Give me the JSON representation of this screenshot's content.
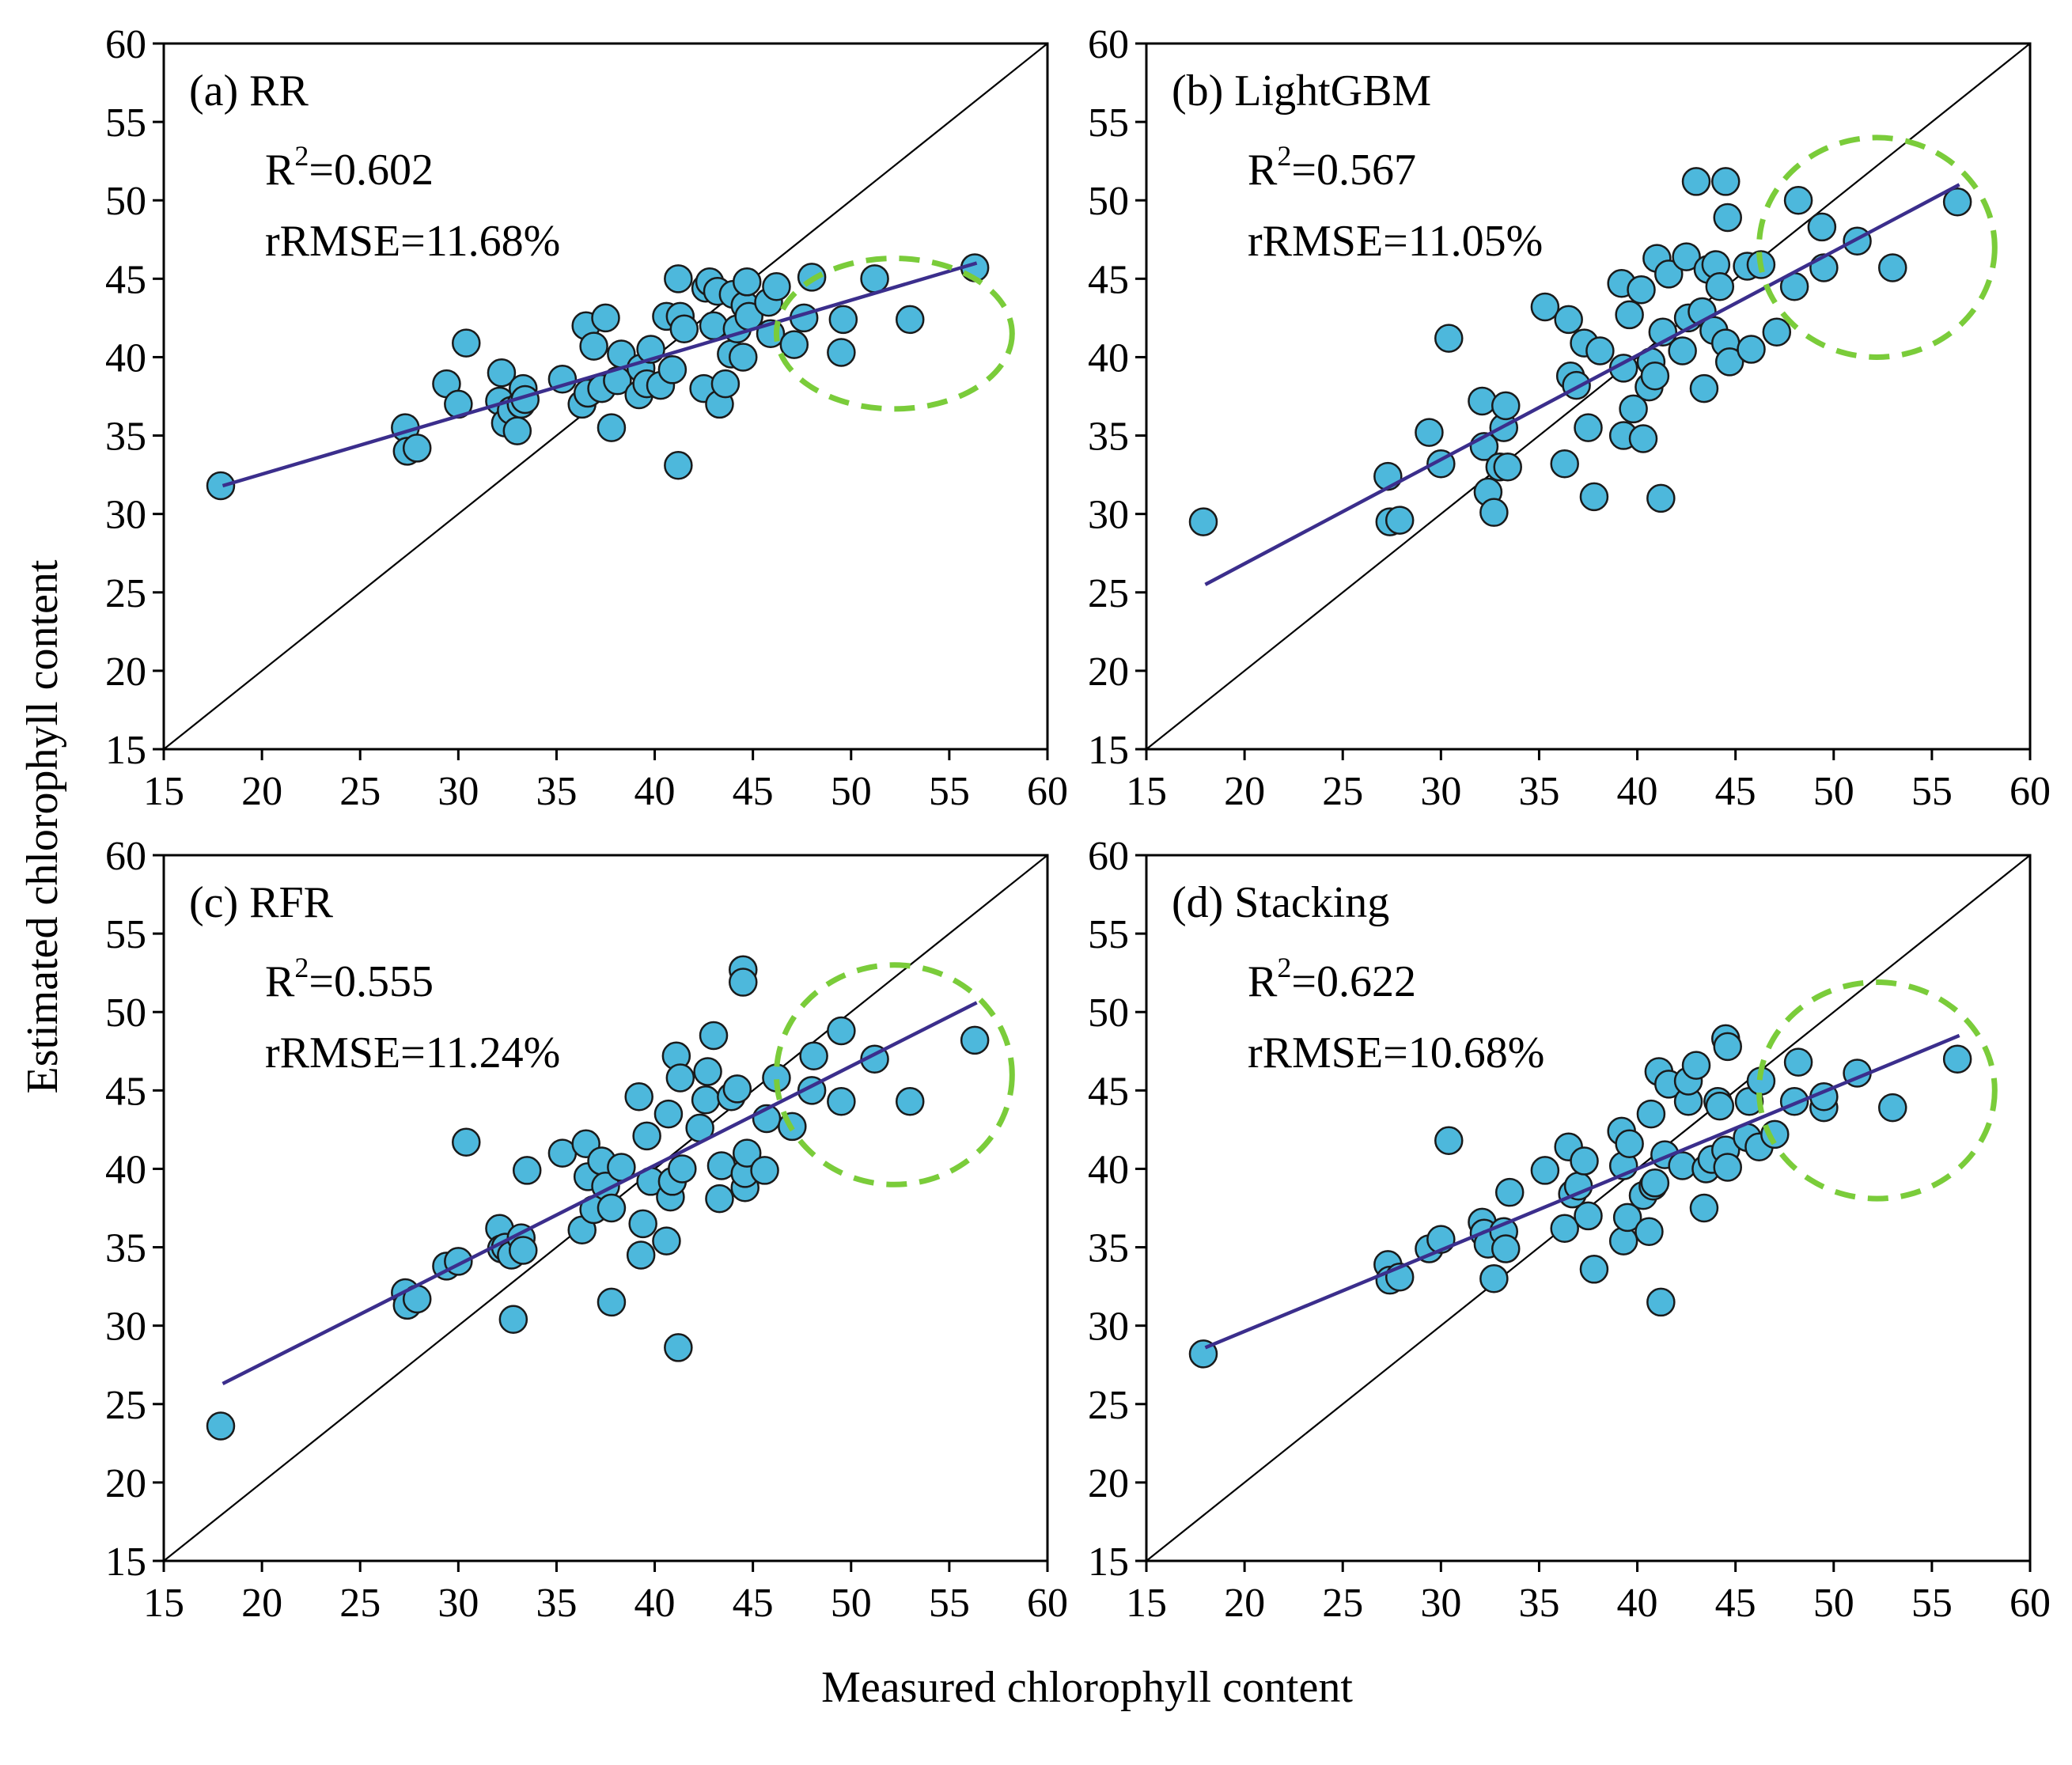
{
  "figure": {
    "xlabel": "Measured chlorophyll content",
    "ylabel": "Estimated chlorophyll content"
  },
  "colors": {
    "point_fill": "#4db8dc",
    "point_stroke": "#1a1a1a",
    "fit_line": "#3b2e8c",
    "one_to_one": "#000000",
    "highlight_circle": "#7acc3a",
    "axes": "#000000"
  },
  "chart_data": [
    {
      "type": "scatter",
      "panel_label": "(a) RR",
      "r2_prefix": "R",
      "r2_sup": "2",
      "r2_value": "=0.602",
      "rrmse": "rRMSE=11.68%",
      "xlim": [
        15,
        60
      ],
      "ylim": [
        15,
        60
      ],
      "xticks": [
        15,
        20,
        25,
        30,
        35,
        40,
        45,
        50,
        55,
        60
      ],
      "yticks": [
        15,
        20,
        25,
        30,
        35,
        40,
        45,
        50,
        55,
        60
      ],
      "one_to_one_line": [
        [
          15,
          15
        ],
        [
          60,
          60
        ]
      ],
      "fit_line": [
        [
          18,
          31.8
        ],
        [
          56.4,
          46.0
        ]
      ],
      "highlight_ellipse": {
        "cx": 52.2,
        "cy": 41.5,
        "rx": 6.0,
        "ry": 4.8
      },
      "points": [
        [
          17.9,
          31.8
        ],
        [
          27.3,
          35.5
        ],
        [
          27.4,
          34.0
        ],
        [
          27.9,
          34.2
        ],
        [
          29.4,
          38.3
        ],
        [
          30.0,
          37.0
        ],
        [
          30.4,
          40.9
        ],
        [
          32.1,
          37.2
        ],
        [
          32.2,
          39.0
        ],
        [
          32.4,
          35.8
        ],
        [
          32.7,
          36.6
        ],
        [
          33.0,
          35.3
        ],
        [
          33.2,
          37.0
        ],
        [
          33.3,
          38.0
        ],
        [
          33.4,
          37.3
        ],
        [
          35.3,
          38.6
        ],
        [
          36.3,
          37.0
        ],
        [
          36.5,
          42.0
        ],
        [
          36.6,
          37.7
        ],
        [
          36.9,
          40.7
        ],
        [
          37.3,
          38.0
        ],
        [
          37.5,
          42.5
        ],
        [
          37.8,
          35.5
        ],
        [
          38.1,
          38.5
        ],
        [
          38.3,
          40.2
        ],
        [
          39.2,
          37.6
        ],
        [
          39.3,
          39.3
        ],
        [
          39.6,
          38.3
        ],
        [
          39.8,
          40.5
        ],
        [
          40.3,
          38.2
        ],
        [
          40.6,
          42.6
        ],
        [
          40.9,
          39.2
        ],
        [
          41.2,
          33.1
        ],
        [
          41.2,
          45.0
        ],
        [
          41.3,
          42.6
        ],
        [
          41.5,
          41.8
        ],
        [
          42.5,
          38.0
        ],
        [
          42.6,
          44.4
        ],
        [
          42.8,
          44.8
        ],
        [
          43.0,
          42.0
        ],
        [
          43.2,
          44.2
        ],
        [
          43.3,
          37.0
        ],
        [
          43.6,
          38.3
        ],
        [
          43.9,
          40.2
        ],
        [
          44.0,
          44.0
        ],
        [
          44.2,
          41.8
        ],
        [
          44.5,
          40.0
        ],
        [
          44.6,
          43.3
        ],
        [
          44.7,
          44.8
        ],
        [
          44.8,
          42.6
        ],
        [
          45.8,
          43.5
        ],
        [
          45.9,
          41.5
        ],
        [
          46.2,
          44.5
        ],
        [
          47.1,
          40.8
        ],
        [
          47.6,
          42.5
        ],
        [
          48.0,
          45.1
        ],
        [
          49.5,
          40.3
        ],
        [
          49.6,
          42.4
        ],
        [
          51.2,
          45.0
        ],
        [
          53.0,
          42.4
        ],
        [
          56.3,
          45.7
        ]
      ]
    },
    {
      "type": "scatter",
      "panel_label": "(b) LightGBM",
      "r2_prefix": "R",
      "r2_sup": "2",
      "r2_value": "=0.567",
      "rrmse": "rRMSE=11.05%",
      "xlim": [
        15,
        60
      ],
      "ylim": [
        15,
        60
      ],
      "xticks": [
        15,
        20,
        25,
        30,
        35,
        40,
        45,
        50,
        55,
        60
      ],
      "yticks": [
        15,
        20,
        25,
        30,
        35,
        40,
        45,
        50,
        55,
        60
      ],
      "one_to_one_line": [
        [
          15,
          15
        ],
        [
          60,
          60
        ]
      ],
      "fit_line": [
        [
          18,
          25.5
        ],
        [
          56.4,
          51.0
        ]
      ],
      "highlight_ellipse": {
        "cx": 52.2,
        "cy": 47.0,
        "rx": 6.0,
        "ry": 7.0
      },
      "points": [
        [
          17.9,
          29.5
        ],
        [
          27.3,
          32.4
        ],
        [
          27.4,
          29.5
        ],
        [
          27.9,
          29.6
        ],
        [
          29.4,
          35.2
        ],
        [
          30.0,
          33.2
        ],
        [
          30.4,
          41.2
        ],
        [
          32.1,
          37.2
        ],
        [
          32.2,
          34.3
        ],
        [
          32.4,
          31.4
        ],
        [
          32.7,
          30.1
        ],
        [
          33.0,
          33.0
        ],
        [
          33.2,
          35.5
        ],
        [
          33.3,
          36.9
        ],
        [
          33.4,
          33.0
        ],
        [
          35.3,
          43.2
        ],
        [
          36.3,
          33.2
        ],
        [
          36.5,
          42.4
        ],
        [
          36.6,
          38.8
        ],
        [
          36.9,
          38.2
        ],
        [
          37.3,
          40.9
        ],
        [
          37.5,
          35.5
        ],
        [
          37.8,
          31.1
        ],
        [
          38.1,
          40.4
        ],
        [
          39.2,
          44.7
        ],
        [
          39.3,
          35.0
        ],
        [
          39.3,
          39.3
        ],
        [
          39.6,
          42.7
        ],
        [
          39.8,
          36.7
        ],
        [
          40.2,
          44.3
        ],
        [
          40.3,
          34.8
        ],
        [
          40.6,
          38.1
        ],
        [
          40.7,
          39.7
        ],
        [
          40.9,
          38.8
        ],
        [
          41.0,
          46.3
        ],
        [
          41.2,
          31.0
        ],
        [
          41.3,
          41.6
        ],
        [
          41.6,
          45.3
        ],
        [
          42.3,
          40.4
        ],
        [
          42.5,
          46.4
        ],
        [
          42.6,
          42.5
        ],
        [
          43.0,
          51.2
        ],
        [
          43.3,
          42.9
        ],
        [
          43.4,
          38.0
        ],
        [
          43.6,
          45.6
        ],
        [
          43.9,
          41.7
        ],
        [
          44.0,
          45.9
        ],
        [
          44.2,
          44.5
        ],
        [
          44.5,
          51.2
        ],
        [
          44.5,
          40.9
        ],
        [
          44.6,
          48.9
        ],
        [
          44.7,
          39.7
        ],
        [
          45.6,
          45.8
        ],
        [
          45.8,
          40.5
        ],
        [
          46.3,
          45.9
        ],
        [
          47.1,
          41.6
        ],
        [
          48.0,
          44.5
        ],
        [
          48.2,
          50.0
        ],
        [
          49.4,
          48.3
        ],
        [
          49.5,
          45.7
        ],
        [
          51.2,
          47.4
        ],
        [
          53.0,
          45.7
        ],
        [
          56.3,
          49.9
        ]
      ]
    },
    {
      "type": "scatter",
      "panel_label": "(c) RFR",
      "r2_prefix": "R",
      "r2_sup": "2",
      "r2_value": "=0.555",
      "rrmse": "rRMSE=11.24%",
      "xlim": [
        15,
        60
      ],
      "ylim": [
        15,
        60
      ],
      "xticks": [
        15,
        20,
        25,
        30,
        35,
        40,
        45,
        50,
        55,
        60
      ],
      "yticks": [
        15,
        20,
        25,
        30,
        35,
        40,
        45,
        50,
        55,
        60
      ],
      "one_to_one_line": [
        [
          15,
          15
        ],
        [
          60,
          60
        ]
      ],
      "fit_line": [
        [
          18,
          26.3
        ],
        [
          56.4,
          50.6
        ]
      ],
      "highlight_ellipse": {
        "cx": 52.2,
        "cy": 46.0,
        "rx": 6.0,
        "ry": 7.0
      },
      "points": [
        [
          17.9,
          23.6
        ],
        [
          27.3,
          32.1
        ],
        [
          27.4,
          31.3
        ],
        [
          27.9,
          31.7
        ],
        [
          29.4,
          33.8
        ],
        [
          30.0,
          34.1
        ],
        [
          30.4,
          41.7
        ],
        [
          32.1,
          36.2
        ],
        [
          32.2,
          34.9
        ],
        [
          32.4,
          35.0
        ],
        [
          32.7,
          34.5
        ],
        [
          32.8,
          30.4
        ],
        [
          33.2,
          35.6
        ],
        [
          33.3,
          34.8
        ],
        [
          33.5,
          39.9
        ],
        [
          35.3,
          41.0
        ],
        [
          36.3,
          36.1
        ],
        [
          36.5,
          41.6
        ],
        [
          36.6,
          39.5
        ],
        [
          36.9,
          37.4
        ],
        [
          37.3,
          40.5
        ],
        [
          37.5,
          38.9
        ],
        [
          37.8,
          31.5
        ],
        [
          37.8,
          37.5
        ],
        [
          38.3,
          40.1
        ],
        [
          39.2,
          44.6
        ],
        [
          39.3,
          34.5
        ],
        [
          39.4,
          36.5
        ],
        [
          39.6,
          42.1
        ],
        [
          39.8,
          39.2
        ],
        [
          40.6,
          35.4
        ],
        [
          40.7,
          43.5
        ],
        [
          40.8,
          38.2
        ],
        [
          40.9,
          39.2
        ],
        [
          41.1,
          47.2
        ],
        [
          41.2,
          28.6
        ],
        [
          41.3,
          45.8
        ],
        [
          41.4,
          40.0
        ],
        [
          42.3,
          42.6
        ],
        [
          42.6,
          44.4
        ],
        [
          42.7,
          46.2
        ],
        [
          43.0,
          48.5
        ],
        [
          43.3,
          38.1
        ],
        [
          43.4,
          40.2
        ],
        [
          43.9,
          44.6
        ],
        [
          44.2,
          45.1
        ],
        [
          44.5,
          52.7
        ],
        [
          44.5,
          51.9
        ],
        [
          44.6,
          38.8
        ],
        [
          44.6,
          39.7
        ],
        [
          44.7,
          41.0
        ],
        [
          45.6,
          39.9
        ],
        [
          45.7,
          43.2
        ],
        [
          46.2,
          45.8
        ],
        [
          47.0,
          42.7
        ],
        [
          48.0,
          45.0
        ],
        [
          48.1,
          47.2
        ],
        [
          49.5,
          48.8
        ],
        [
          49.5,
          44.3
        ],
        [
          51.2,
          47.0
        ],
        [
          53.0,
          44.3
        ],
        [
          56.3,
          48.2
        ]
      ]
    },
    {
      "type": "scatter",
      "panel_label": "(d) Stacking",
      "r2_prefix": "R",
      "r2_sup": "2",
      "r2_value": "=0.622",
      "rrmse": "rRMSE=10.68%",
      "xlim": [
        15,
        60
      ],
      "ylim": [
        15,
        60
      ],
      "xticks": [
        15,
        20,
        25,
        30,
        35,
        40,
        45,
        50,
        55,
        60
      ],
      "yticks": [
        15,
        20,
        25,
        30,
        35,
        40,
        45,
        50,
        55,
        60
      ],
      "one_to_one_line": [
        [
          15,
          15
        ],
        [
          60,
          60
        ]
      ],
      "fit_line": [
        [
          18,
          28.6
        ],
        [
          56.4,
          48.5
        ]
      ],
      "highlight_ellipse": {
        "cx": 52.2,
        "cy": 45.0,
        "rx": 6.0,
        "ry": 6.9
      },
      "points": [
        [
          17.9,
          28.2
        ],
        [
          27.3,
          33.9
        ],
        [
          27.4,
          32.9
        ],
        [
          27.9,
          33.1
        ],
        [
          29.4,
          34.9
        ],
        [
          30.0,
          35.5
        ],
        [
          30.4,
          41.8
        ],
        [
          32.1,
          36.6
        ],
        [
          32.2,
          35.9
        ],
        [
          32.4,
          35.2
        ],
        [
          32.7,
          33.0
        ],
        [
          33.2,
          36.0
        ],
        [
          33.3,
          34.9
        ],
        [
          33.5,
          38.5
        ],
        [
          35.3,
          39.9
        ],
        [
          36.3,
          36.2
        ],
        [
          36.5,
          41.4
        ],
        [
          36.7,
          38.4
        ],
        [
          37.0,
          38.9
        ],
        [
          37.3,
          40.5
        ],
        [
          37.5,
          37.0
        ],
        [
          37.8,
          33.6
        ],
        [
          39.2,
          42.4
        ],
        [
          39.3,
          35.4
        ],
        [
          39.3,
          40.2
        ],
        [
          39.5,
          36.9
        ],
        [
          39.6,
          41.6
        ],
        [
          40.3,
          38.3
        ],
        [
          40.6,
          36.0
        ],
        [
          40.7,
          43.5
        ],
        [
          40.8,
          38.9
        ],
        [
          40.9,
          39.1
        ],
        [
          41.1,
          46.2
        ],
        [
          41.2,
          31.5
        ],
        [
          41.4,
          40.9
        ],
        [
          41.6,
          45.4
        ],
        [
          42.3,
          40.2
        ],
        [
          42.6,
          44.3
        ],
        [
          42.6,
          45.6
        ],
        [
          43.0,
          46.6
        ],
        [
          43.4,
          37.5
        ],
        [
          43.5,
          40.0
        ],
        [
          43.8,
          40.6
        ],
        [
          44.1,
          44.3
        ],
        [
          44.2,
          44.0
        ],
        [
          44.5,
          48.3
        ],
        [
          44.5,
          41.2
        ],
        [
          44.6,
          47.8
        ],
        [
          44.6,
          40.1
        ],
        [
          45.6,
          42.0
        ],
        [
          45.7,
          44.3
        ],
        [
          46.2,
          41.4
        ],
        [
          46.3,
          45.6
        ],
        [
          47.0,
          42.2
        ],
        [
          48.0,
          44.3
        ],
        [
          48.2,
          46.8
        ],
        [
          49.5,
          43.9
        ],
        [
          49.5,
          44.6
        ],
        [
          51.2,
          46.1
        ],
        [
          53.0,
          43.9
        ],
        [
          56.3,
          47.0
        ]
      ]
    }
  ]
}
